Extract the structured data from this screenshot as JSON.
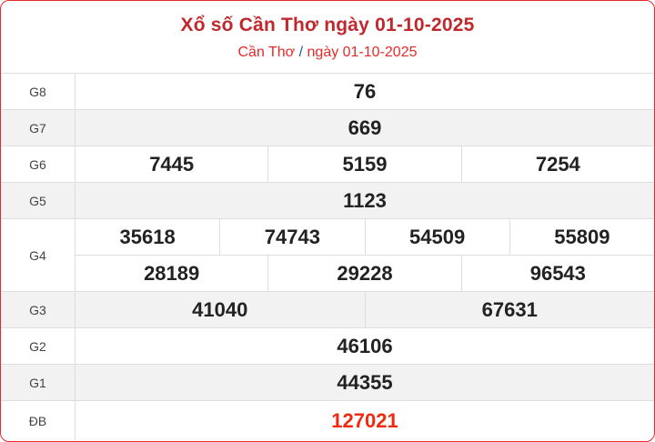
{
  "header": {
    "title": "Xổ số Cần Thơ ngày 01-10-2025",
    "sub_place": "Cần Thơ",
    "sub_sep": "/",
    "sub_date": "ngày 01-10-2025"
  },
  "prizes": [
    {
      "label": "G8",
      "lines": [
        [
          "76"
        ]
      ]
    },
    {
      "label": "G7",
      "lines": [
        [
          "669"
        ]
      ]
    },
    {
      "label": "G6",
      "lines": [
        [
          "7445",
          "5159",
          "7254"
        ]
      ]
    },
    {
      "label": "G5",
      "lines": [
        [
          "1123"
        ]
      ]
    },
    {
      "label": "G4",
      "lines": [
        [
          "35618",
          "74743",
          "54509",
          "55809"
        ],
        [
          "28189",
          "29228",
          "96543"
        ]
      ]
    },
    {
      "label": "G3",
      "lines": [
        [
          "41040",
          "67631"
        ]
      ]
    },
    {
      "label": "G2",
      "lines": [
        [
          "46106"
        ]
      ]
    },
    {
      "label": "G1",
      "lines": [
        [
          "44355"
        ]
      ]
    },
    {
      "label": "ĐB",
      "lines": [
        [
          "127021"
        ]
      ]
    }
  ],
  "colors": {
    "title": "#c0282d",
    "border": "#e52a2a",
    "special": "#f02a12",
    "alt_row": "#f2f2f2"
  }
}
